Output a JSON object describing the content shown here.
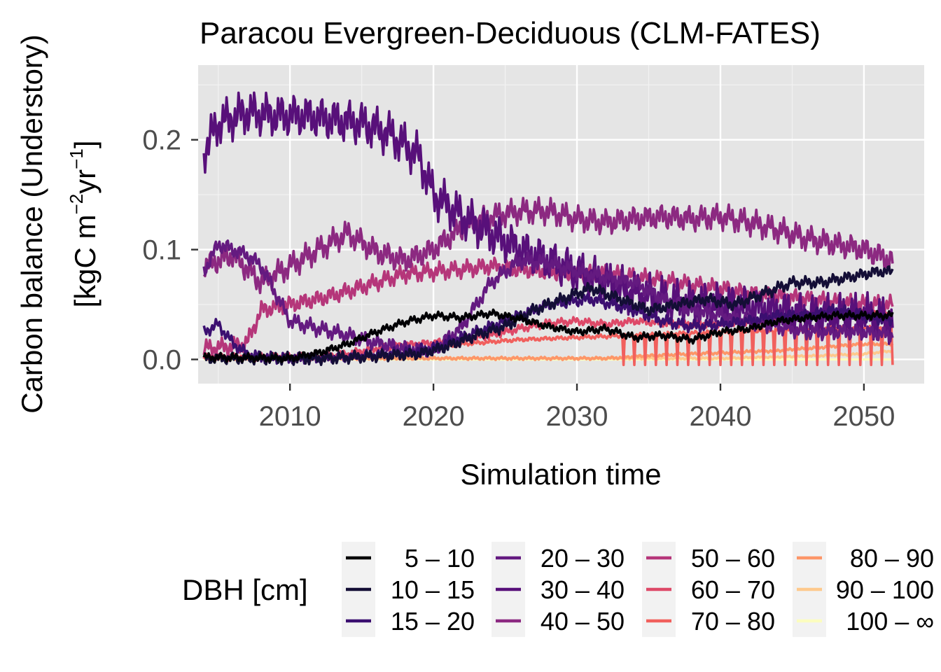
{
  "chart_data": {
    "type": "line",
    "title": "Paracou Evergreen-Deciduous (CLM-FATES)",
    "xlabel": "Simulation time",
    "ylabel_line1": "Carbon balance (Understory)",
    "ylabel_line2_prefix": "[kgC m",
    "ylabel_sup1": "−2",
    "ylabel_mid": "yr",
    "ylabel_sup2": "−1",
    "ylabel_suffix": "]",
    "xlim": [
      2003.6,
      2054.2
    ],
    "ylim": [
      -0.022,
      0.268
    ],
    "x_ticks": [
      2010,
      2020,
      2030,
      2040,
      2050
    ],
    "x_tick_labels": [
      "2010",
      "2020",
      "2030",
      "2040",
      "2050"
    ],
    "y_ticks": [
      0.0,
      0.1,
      0.2
    ],
    "y_tick_labels": [
      "0.0",
      "0.1",
      "0.2"
    ],
    "grid": true,
    "panel_background": "#e5e5e5",
    "legend": {
      "title": "DBH [cm]",
      "position": "bottom",
      "labels": [
        "5 – 10",
        "10 – 15",
        "15 – 20",
        "20 – 30",
        "30 – 40",
        "40 – 50",
        "50 – 60",
        "60 – 70",
        "70 – 80",
        "80 – 90",
        "90 – 100",
        "100 – ∞"
      ]
    },
    "series": [
      {
        "name": "5 – 10",
        "color": "#000004",
        "x": [
          2004,
          2010,
          2012,
          2014,
          2016,
          2018,
          2020,
          2022,
          2024,
          2026,
          2028,
          2030,
          2032,
          2034,
          2036,
          2038,
          2040,
          2042,
          2044,
          2046,
          2048,
          2050,
          2052
        ],
        "y": [
          0.002,
          0.001,
          0.006,
          0.014,
          0.025,
          0.034,
          0.04,
          0.038,
          0.042,
          0.037,
          0.03,
          0.025,
          0.028,
          0.02,
          0.022,
          0.018,
          0.025,
          0.028,
          0.035,
          0.038,
          0.04,
          0.04,
          0.04
        ],
        "amp": 0.004
      },
      {
        "name": "10 – 15",
        "color": "#140e36",
        "x": [
          2004,
          2012,
          2016,
          2019,
          2021,
          2023,
          2025,
          2027,
          2029,
          2031,
          2033,
          2035,
          2037,
          2039,
          2041,
          2043,
          2045,
          2047,
          2049,
          2051,
          2052
        ],
        "y": [
          0.001,
          0.001,
          0.003,
          0.005,
          0.012,
          0.022,
          0.03,
          0.045,
          0.055,
          0.065,
          0.055,
          0.045,
          0.05,
          0.055,
          0.05,
          0.06,
          0.07,
          0.07,
          0.075,
          0.08,
          0.08
        ],
        "amp": 0.006
      },
      {
        "name": "15 – 20",
        "color": "#3b0f70",
        "x": [
          2004,
          2005,
          2006,
          2007,
          2008,
          2010,
          2012,
          2014,
          2016,
          2018,
          2020,
          2022,
          2025,
          2028,
          2031,
          2034,
          2036,
          2038,
          2040,
          2042,
          2044,
          2046,
          2048,
          2050,
          2052
        ],
        "y": [
          0.025,
          0.032,
          0.015,
          0.005,
          0.002,
          0.001,
          0.001,
          0.002,
          0.004,
          0.006,
          0.01,
          0.02,
          0.035,
          0.05,
          0.055,
          0.045,
          0.035,
          0.03,
          0.032,
          0.035,
          0.04,
          0.04,
          0.045,
          0.04,
          0.035
        ],
        "amp": 0.006
      },
      {
        "name": "20 – 30",
        "color": "#641a80",
        "x": [
          2004,
          2005,
          2006,
          2007,
          2008,
          2009,
          2010,
          2012,
          2014,
          2016,
          2018,
          2020,
          2022,
          2024,
          2026,
          2028,
          2030,
          2032,
          2034,
          2036,
          2038,
          2040,
          2042,
          2044,
          2046,
          2048,
          2050,
          2052
        ],
        "y": [
          0.08,
          0.105,
          0.1,
          0.095,
          0.085,
          0.06,
          0.035,
          0.028,
          0.022,
          0.015,
          0.01,
          0.008,
          0.03,
          0.07,
          0.09,
          0.088,
          0.08,
          0.075,
          0.07,
          0.055,
          0.045,
          0.04,
          0.035,
          0.03,
          0.025,
          0.025,
          0.025,
          0.022
        ],
        "amp": 0.008
      },
      {
        "name": "30 – 40",
        "color": "#58107a",
        "x": [
          2004,
          2005,
          2007,
          2009,
          2011,
          2013,
          2015,
          2017,
          2019,
          2020,
          2022,
          2024,
          2026,
          2028,
          2030,
          2032,
          2034,
          2036,
          2038,
          2040,
          2042,
          2044,
          2046,
          2048,
          2050,
          2052
        ],
        "y": [
          0.19,
          0.215,
          0.225,
          0.222,
          0.222,
          0.218,
          0.215,
          0.205,
          0.185,
          0.15,
          0.13,
          0.115,
          0.1,
          0.09,
          0.08,
          0.07,
          0.06,
          0.055,
          0.05,
          0.05,
          0.048,
          0.045,
          0.04,
          0.04,
          0.04,
          0.035
        ],
        "amp": 0.022
      },
      {
        "name": "40 – 50",
        "color": "#8c2981",
        "x": [
          2004,
          2006,
          2008,
          2010,
          2012,
          2014,
          2016,
          2018,
          2020,
          2022,
          2024,
          2026,
          2028,
          2030,
          2032,
          2034,
          2036,
          2038,
          2040,
          2042,
          2044,
          2046,
          2048,
          2050,
          2052
        ],
        "y": [
          0.085,
          0.095,
          0.07,
          0.085,
          0.1,
          0.115,
          0.098,
          0.09,
          0.1,
          0.12,
          0.13,
          0.135,
          0.135,
          0.128,
          0.125,
          0.128,
          0.13,
          0.128,
          0.13,
          0.125,
          0.118,
          0.11,
          0.105,
          0.1,
          0.09
        ],
        "amp": 0.013
      },
      {
        "name": "50 – 60",
        "color": "#b5367a",
        "x": [
          2004,
          2006,
          2007,
          2008,
          2010,
          2012,
          2014,
          2016,
          2018,
          2020,
          2022,
          2024,
          2026,
          2028,
          2030,
          2032,
          2034,
          2036,
          2038,
          2040,
          2042,
          2044,
          2046,
          2048,
          2050,
          2052
        ],
        "y": [
          0.01,
          0.012,
          0.015,
          0.045,
          0.05,
          0.055,
          0.062,
          0.07,
          0.078,
          0.08,
          0.082,
          0.085,
          0.082,
          0.08,
          0.078,
          0.078,
          0.075,
          0.072,
          0.068,
          0.065,
          0.06,
          0.058,
          0.055,
          0.052,
          0.05,
          0.05
        ],
        "amp": 0.009
      },
      {
        "name": "60 – 70",
        "color": "#de4968",
        "x": [
          2004,
          2012,
          2014,
          2016,
          2018,
          2020,
          2022,
          2024,
          2026,
          2028,
          2030,
          2032,
          2034,
          2036,
          2038,
          2040,
          2042,
          2044,
          2046,
          2048,
          2050,
          2052
        ],
        "y": [
          0.002,
          0.002,
          0.005,
          0.01,
          0.013,
          0.015,
          0.018,
          0.022,
          0.028,
          0.033,
          0.035,
          0.032,
          0.035,
          0.033,
          0.032,
          0.033,
          0.035,
          0.038,
          0.04,
          0.042,
          0.042,
          0.04
        ],
        "amp": 0.004
      },
      {
        "name": "70 – 80",
        "color": "#f1605d",
        "x": [
          2004,
          2016,
          2018,
          2020,
          2022,
          2024,
          2026,
          2028,
          2030,
          2032,
          2034,
          2036,
          2038,
          2040,
          2042,
          2044,
          2046,
          2048,
          2050,
          2052
        ],
        "y": [
          0.002,
          0.003,
          0.006,
          0.01,
          0.014,
          0.016,
          0.018,
          0.019,
          0.02,
          0.021,
          0.022,
          0.023,
          0.024,
          0.025,
          0.026,
          0.027,
          0.028,
          0.029,
          0.029,
          0.03
        ],
        "amp": 0.002,
        "dips": true
      },
      {
        "name": "80 – 90",
        "color": "#fd9668",
        "x": [
          2004,
          2032,
          2036,
          2040,
          2044,
          2048,
          2050,
          2052
        ],
        "y": [
          0.001,
          0.001,
          0.004,
          0.006,
          0.008,
          0.012,
          0.014,
          0.014
        ],
        "amp": 0.0015
      },
      {
        "name": "90 – 100",
        "color": "#fec98d",
        "x": [
          2004,
          2040,
          2046,
          2050,
          2052
        ],
        "y": [
          0.001,
          0.001,
          0.003,
          0.005,
          0.008
        ],
        "amp": 0.001
      },
      {
        "name": "100 – ∞",
        "color": "#fcfdbf",
        "x": [
          2004,
          2052
        ],
        "y": [
          0.0,
          0.0
        ],
        "amp": 0.0
      }
    ]
  }
}
